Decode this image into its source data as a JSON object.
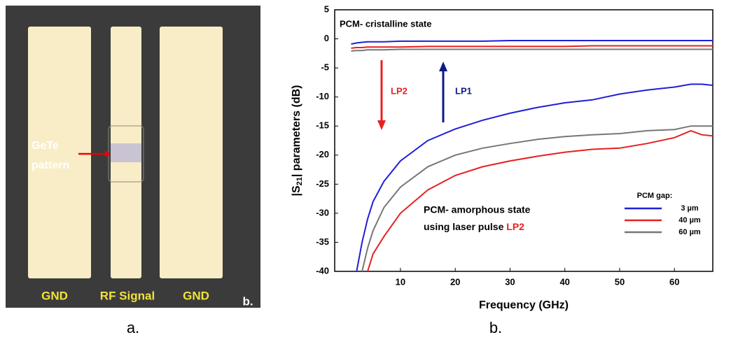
{
  "panel_a": {
    "pattern_label": [
      "GeTe",
      "pattern"
    ],
    "pad_labels": [
      "GND",
      "RF Signal",
      "GND"
    ],
    "corner_label": "b.",
    "caption": "a."
  },
  "chart_data": {
    "type": "line",
    "caption": "b.",
    "x_label": "Frequency (GHz)",
    "y_label": [
      "|S",
      "21",
      "| parameters (dB)"
    ],
    "annotations": {
      "crystalline": "PCM- cristalline state",
      "lp2": "LP2",
      "lp1": "LP1",
      "amorphous": "PCM- amorphous state",
      "laser": "using laser pulse ",
      "laser_pulse": "LP2"
    },
    "legend_title": "PCM gap:",
    "x": [
      1,
      2,
      3,
      4,
      5,
      7,
      10,
      15,
      20,
      25,
      30,
      35,
      40,
      45,
      50,
      55,
      60,
      63,
      65,
      67
    ],
    "series": [
      {
        "name": "3 µm",
        "color": "#1f1fd6",
        "values": [
          null,
          -40,
          -35,
          -31,
          -28,
          -24.5,
          -21,
          -17.5,
          -15.5,
          -14,
          -12.8,
          -11.8,
          -11,
          -10.5,
          -9.5,
          -8.8,
          -8.3,
          -7.8,
          -7.8,
          -8
        ],
        "crystalline_values": [
          -0.9,
          -0.7,
          -0.6,
          -0.5,
          -0.5,
          -0.5,
          -0.4,
          -0.4,
          -0.4,
          -0.4,
          -0.3,
          -0.3,
          -0.3,
          -0.3,
          -0.3,
          -0.3,
          -0.3,
          -0.3,
          -0.3,
          -0.3
        ]
      },
      {
        "name": "40 µm",
        "color": "#e82020",
        "values": [
          null,
          null,
          null,
          -40,
          -37,
          -34,
          -30,
          -26,
          -23.5,
          -22,
          -21,
          -20.2,
          -19.5,
          -19,
          -18.8,
          -18,
          -17,
          -15.8,
          -16.5,
          -16.7
        ],
        "crystalline_values": [
          -1.6,
          -1.5,
          -1.5,
          -1.4,
          -1.4,
          -1.4,
          -1.4,
          -1.3,
          -1.3,
          -1.3,
          -1.3,
          -1.3,
          -1.3,
          -1.2,
          -1.2,
          -1.2,
          -1.2,
          -1.2,
          -1.2,
          -1.2
        ]
      },
      {
        "name": "60 µm",
        "color": "#777777",
        "values": [
          null,
          null,
          -40,
          -36,
          -33,
          -29,
          -25.5,
          -22,
          -20,
          -18.8,
          -18,
          -17.3,
          -16.8,
          -16.5,
          -16.3,
          -15.8,
          -15.6,
          -15,
          -15,
          -15
        ],
        "crystalline_values": [
          -2.1,
          -2,
          -2,
          -1.9,
          -1.9,
          -1.9,
          -1.8,
          -1.8,
          -1.8,
          -1.8,
          -1.8,
          -1.8,
          -1.8,
          -1.8,
          -1.8,
          -1.8,
          -1.8,
          -1.8,
          -1.8,
          -1.8
        ]
      }
    ],
    "xlim": [
      -2,
      67
    ],
    "ylim": [
      -40,
      5
    ],
    "xticks": [
      10,
      20,
      30,
      40,
      50,
      60
    ],
    "yticks": [
      -40,
      -35,
      -30,
      -25,
      -20,
      -15,
      -10,
      -5,
      0,
      5
    ]
  }
}
